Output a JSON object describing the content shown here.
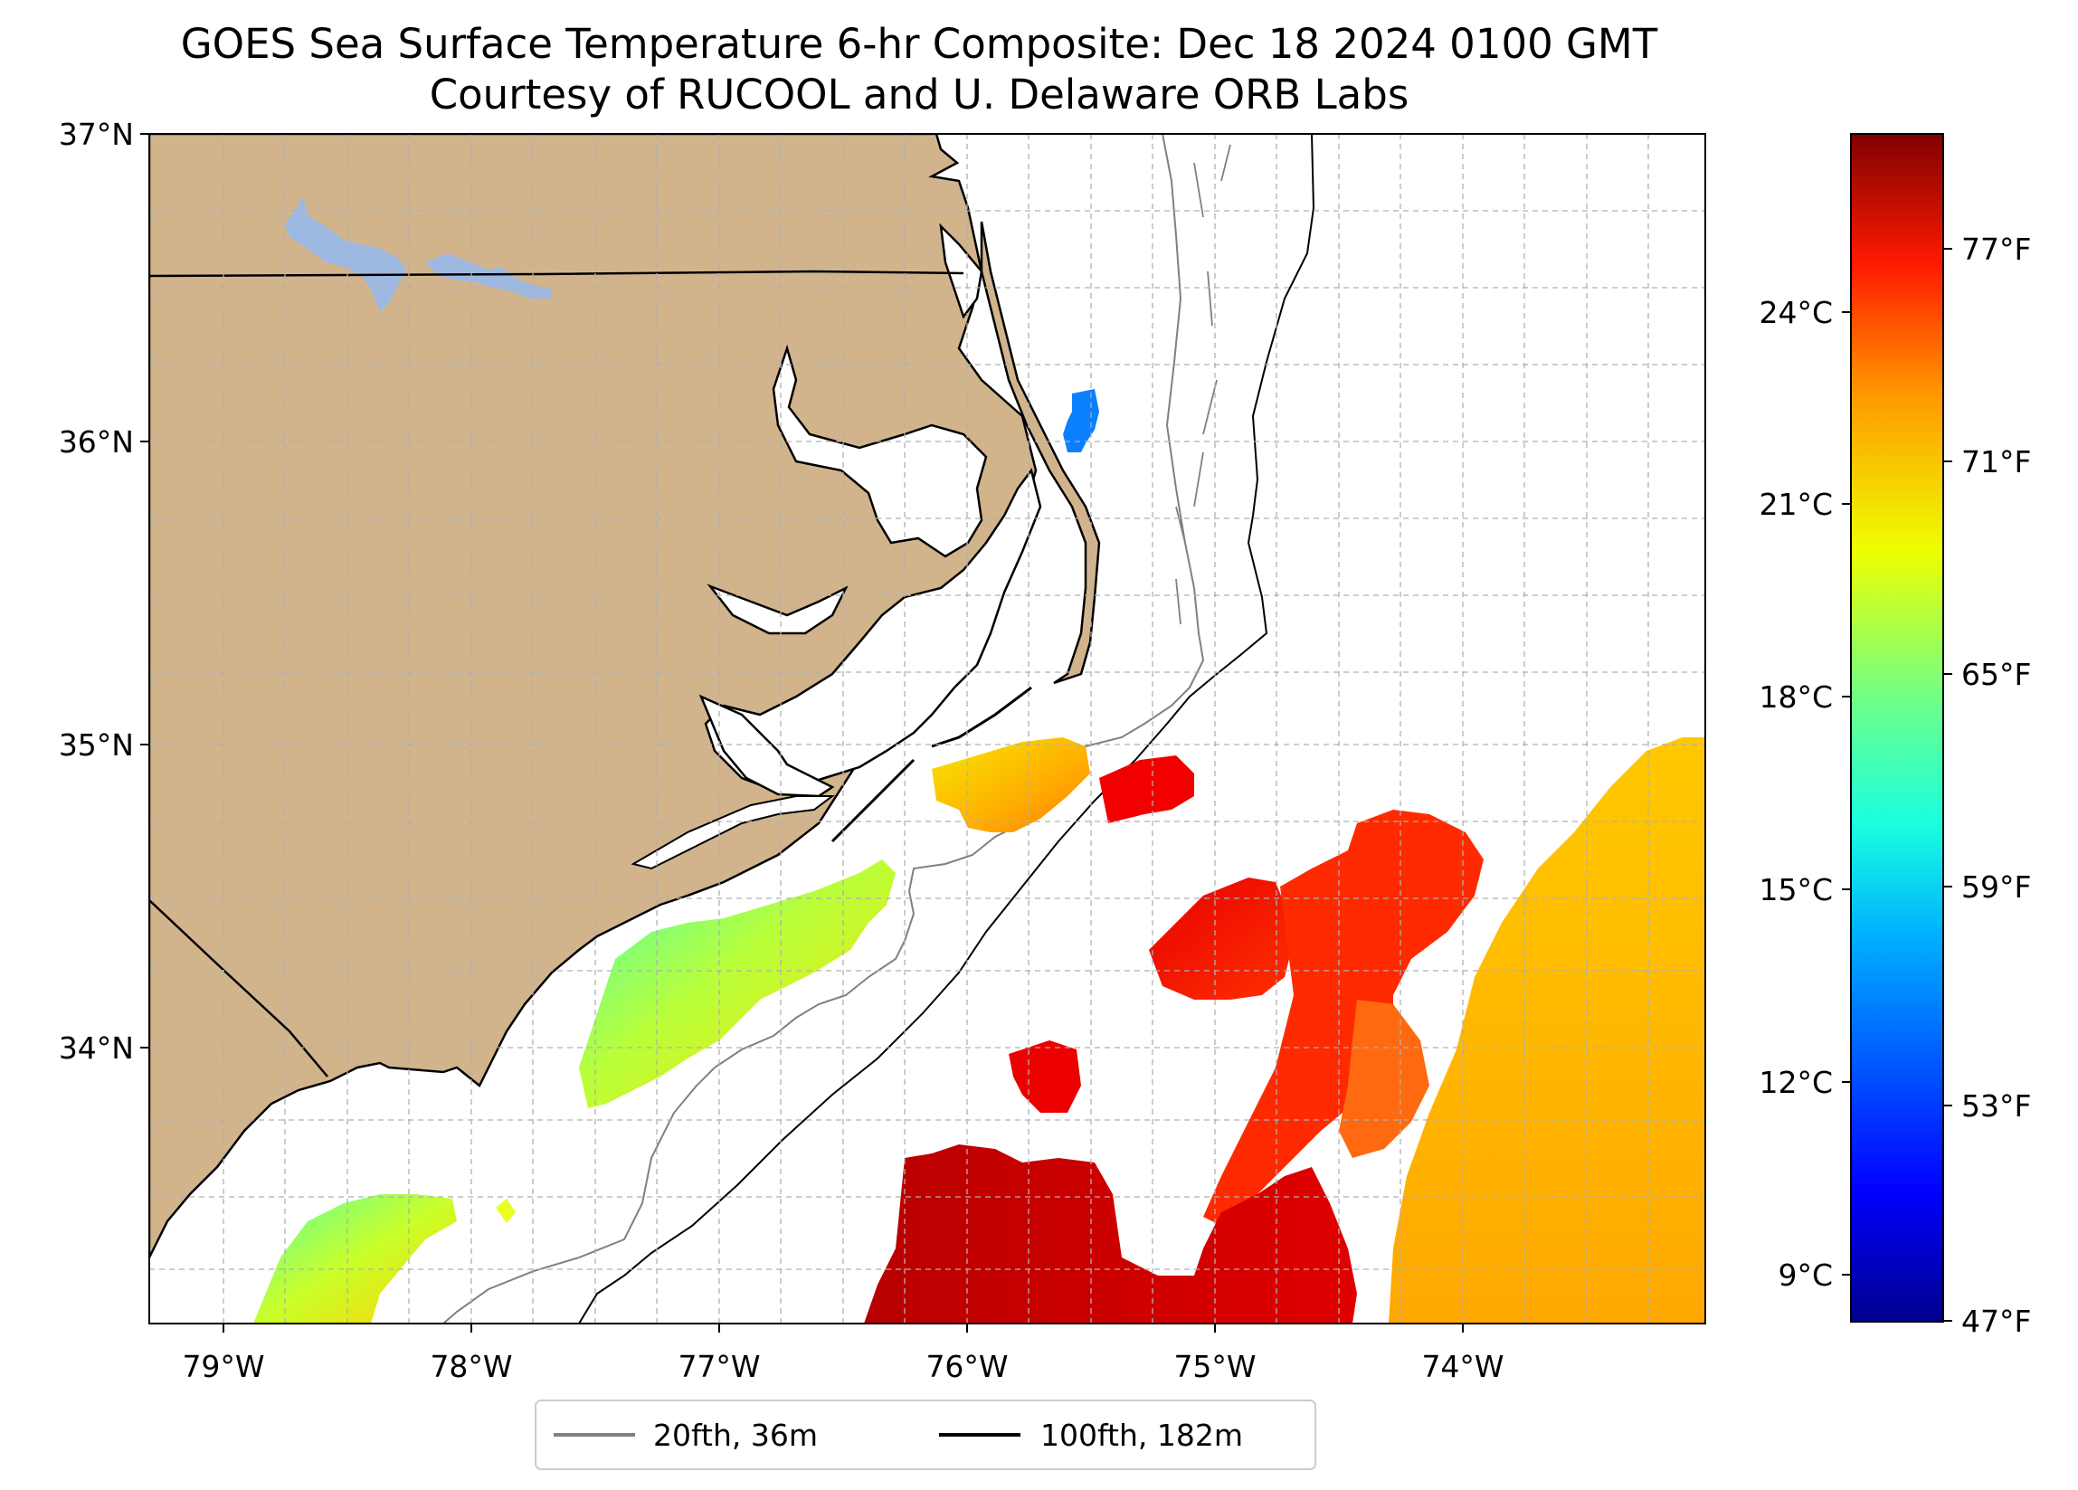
{
  "title": "GOES Sea Surface Temperature 6-hr Composite: Dec 18 2024 0100 GMT",
  "subtitle": "Courtesy of RUCOOL and U. Delaware ORB Labs",
  "map": {
    "lat_labels": [
      "37°N",
      "36°N",
      "35°N",
      "34°N"
    ],
    "lon_labels": [
      "79°W",
      "78°W",
      "77°W",
      "76°W",
      "75°W",
      "74°W"
    ]
  },
  "colorbar": {
    "celsius_labels": [
      "24°C",
      "21°C",
      "18°C",
      "15°C",
      "12°C",
      "9°C"
    ],
    "fahrenheit_labels": [
      "77°F",
      "71°F",
      "65°F",
      "59°F",
      "53°F",
      "47°F"
    ],
    "colors": {
      "dark_red": "#800000",
      "red": "#ff1a00",
      "orange": "#ff9900",
      "yellow": "#eeff00",
      "green": "#6cff8c",
      "cyan": "#1affdf",
      "blue": "#0080ff",
      "dark_blue": "#00008f"
    }
  },
  "legend": {
    "items": [
      {
        "label": "20fth, 36m",
        "color": "#808080"
      },
      {
        "label": "100fth, 182m",
        "color": "#000000"
      }
    ]
  },
  "colors": {
    "land": "#d2b48c",
    "lake": "#9eb9e1",
    "coast": "#000000",
    "grid": "#b0b0b0"
  }
}
